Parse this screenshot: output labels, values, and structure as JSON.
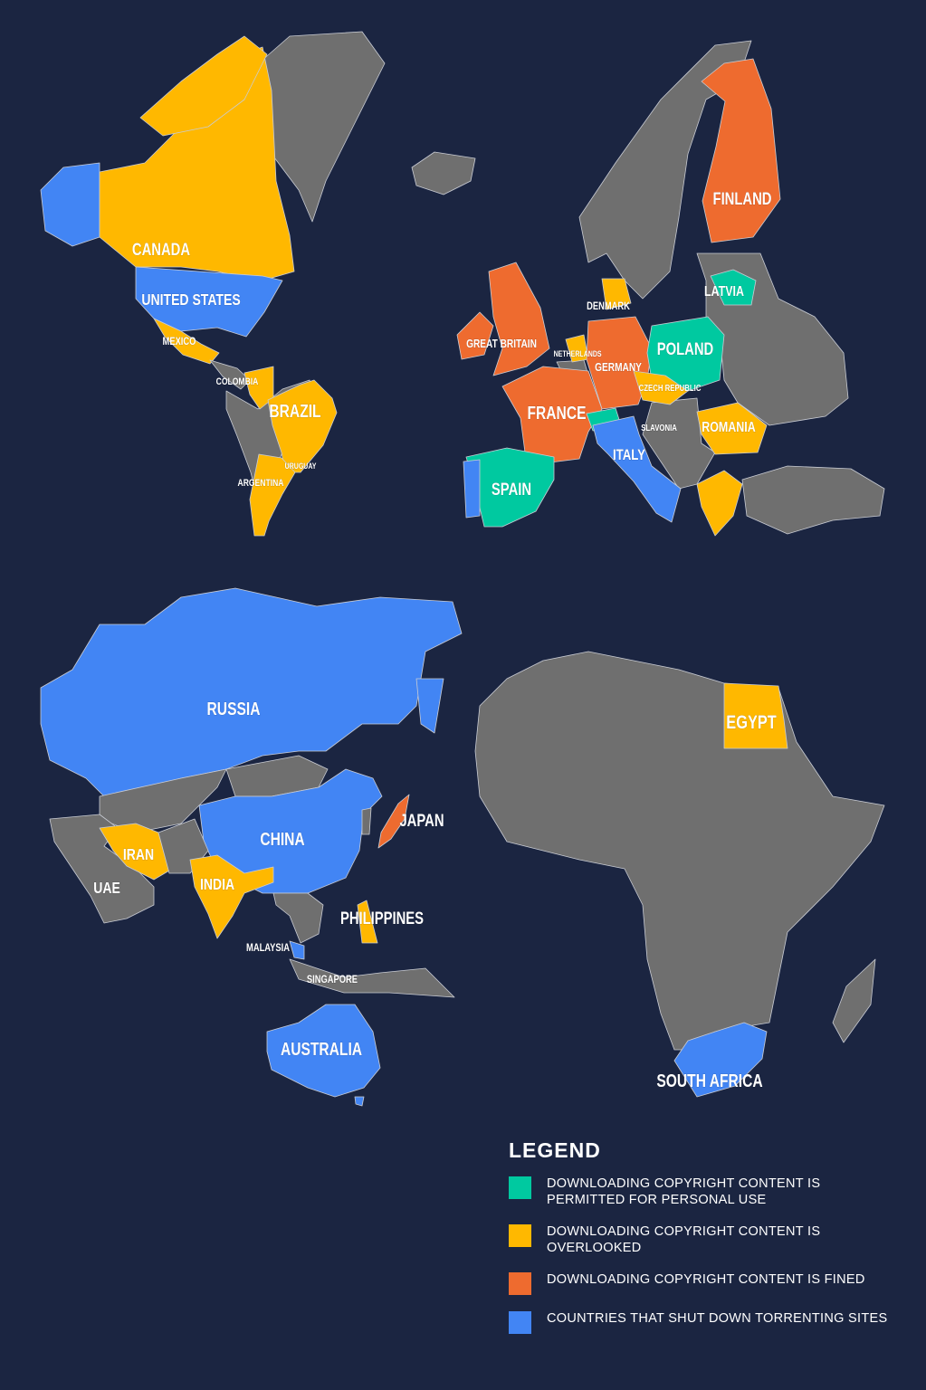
{
  "colors": {
    "background": "#1b2541",
    "other": "#6f6f6f",
    "permitted": "#00c9a0",
    "overlooked": "#ffb800",
    "fined": "#ee6b2f",
    "shutdown": "#4285f4"
  },
  "legend": {
    "title": "LEGEND",
    "items": [
      {
        "key": "permitted",
        "text": "DOWNLOADING COPYRIGHT CONTENT IS PERMITTED FOR PERSONAL USE"
      },
      {
        "key": "overlooked",
        "text": "DOWNLOADING COPYRIGHT CONTENT IS OVERLOOKED"
      },
      {
        "key": "fined",
        "text": "DOWNLOADING COPYRIGHT CONTENT IS FINED"
      },
      {
        "key": "shutdown",
        "text": "COUNTRIES THAT SHUT DOWN TORRENTING SITES"
      }
    ]
  },
  "countries": [
    {
      "label": "CANADA",
      "category": "overlooked"
    },
    {
      "label": "UNITED STATES",
      "category": "shutdown"
    },
    {
      "label": "MEXICO",
      "category": "overlooked"
    },
    {
      "label": "COLOMBIA",
      "category": "overlooked"
    },
    {
      "label": "BRAZIL",
      "category": "overlooked"
    },
    {
      "label": "URUGUAY",
      "category": "overlooked"
    },
    {
      "label": "ARGENTINA",
      "category": "overlooked"
    },
    {
      "label": "FINLAND",
      "category": "fined"
    },
    {
      "label": "LATVIA",
      "category": "permitted"
    },
    {
      "label": "DENMARK",
      "category": "overlooked"
    },
    {
      "label": "GREAT BRITAIN",
      "category": "fined"
    },
    {
      "label": "NETHERLANDS",
      "category": "overlooked"
    },
    {
      "label": "POLAND",
      "category": "permitted"
    },
    {
      "label": "GERMANY",
      "category": "fined"
    },
    {
      "label": "CZECH REPUBLIC",
      "category": "overlooked"
    },
    {
      "label": "FRANCE",
      "category": "fined"
    },
    {
      "label": "SLAVONIA",
      "category": "overlooked"
    },
    {
      "label": "ROMANIA",
      "category": "overlooked"
    },
    {
      "label": "ITALY",
      "category": "shutdown"
    },
    {
      "label": "SPAIN",
      "category": "permitted"
    },
    {
      "label": "RUSSIA",
      "category": "shutdown"
    },
    {
      "label": "CHINA",
      "category": "shutdown"
    },
    {
      "label": "JAPAN",
      "category": "fined"
    },
    {
      "label": "IRAN",
      "category": "overlooked"
    },
    {
      "label": "INDIA",
      "category": "overlooked"
    },
    {
      "label": "UAE",
      "category": "other"
    },
    {
      "label": "PHILIPPINES",
      "category": "overlooked"
    },
    {
      "label": "MALAYSIA",
      "category": "shutdown"
    },
    {
      "label": "SINGAPORE",
      "category": "other"
    },
    {
      "label": "AUSTRALIA",
      "category": "shutdown"
    },
    {
      "label": "EGYPT",
      "category": "overlooked"
    },
    {
      "label": "SOUTH AFRICA",
      "category": "shutdown"
    }
  ]
}
